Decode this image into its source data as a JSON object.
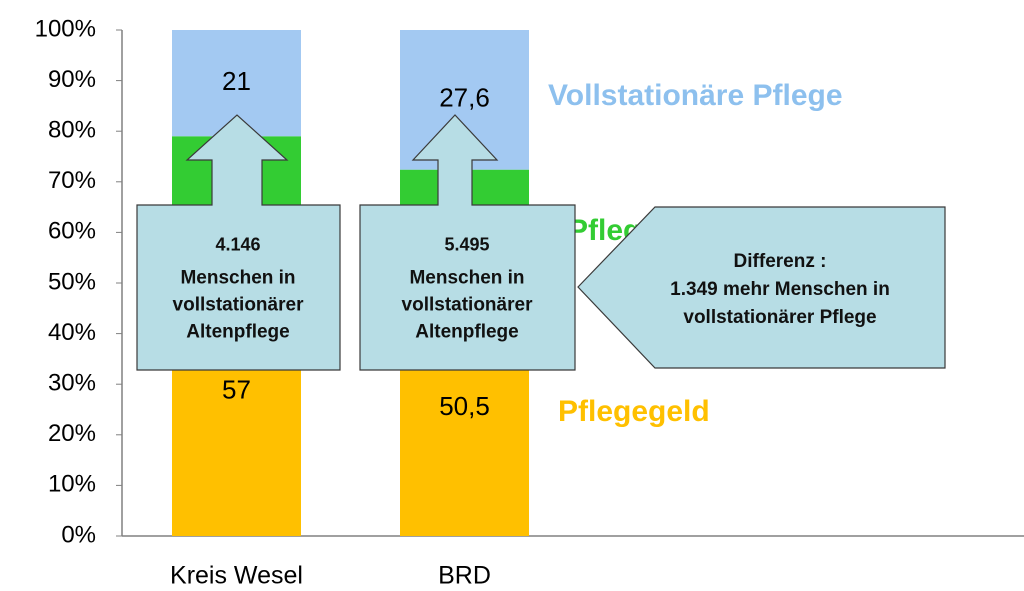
{
  "chart_data": {
    "type": "stacked_bar",
    "categories": [
      "Kreis Wesel",
      "BRD"
    ],
    "series": [
      {
        "name": "Pflegegeld",
        "color": "#ffc000",
        "values": [
          57,
          50.5
        ],
        "value_labels": [
          "57",
          "50,5"
        ]
      },
      {
        "name": "Pflegedienste",
        "color": "#33cc33",
        "values": [
          22,
          21.9
        ]
      },
      {
        "name": "Vollstationäre Pflege",
        "color": "#a3c9f2",
        "values": [
          21,
          27.6
        ],
        "value_labels": [
          "21",
          "27,6"
        ]
      }
    ],
    "ylim": [
      0,
      100
    ],
    "yticks": [
      {
        "value": 0,
        "label": "0%"
      },
      {
        "value": 10,
        "label": "10%"
      },
      {
        "value": 20,
        "label": "20%"
      },
      {
        "value": 30,
        "label": "30%"
      },
      {
        "value": 40,
        "label": "40%"
      },
      {
        "value": 50,
        "label": "50%"
      },
      {
        "value": 60,
        "label": "60%"
      },
      {
        "value": 70,
        "label": "70%"
      },
      {
        "value": 80,
        "label": "80%"
      },
      {
        "value": 90,
        "label": "90%"
      },
      {
        "value": 100,
        "label": "100%"
      }
    ],
    "annotations": [
      {
        "lines": [
          "4.146",
          "Menschen in",
          "vollstationärer",
          "Altenpflege"
        ]
      },
      {
        "lines": [
          "5.495",
          "Menschen in",
          "vollstationärer",
          "Altenpflege"
        ]
      },
      {
        "lines": [
          "Differenz :",
          "1.349 mehr Menschen in",
          "vollstationärer Pflege"
        ]
      }
    ]
  }
}
